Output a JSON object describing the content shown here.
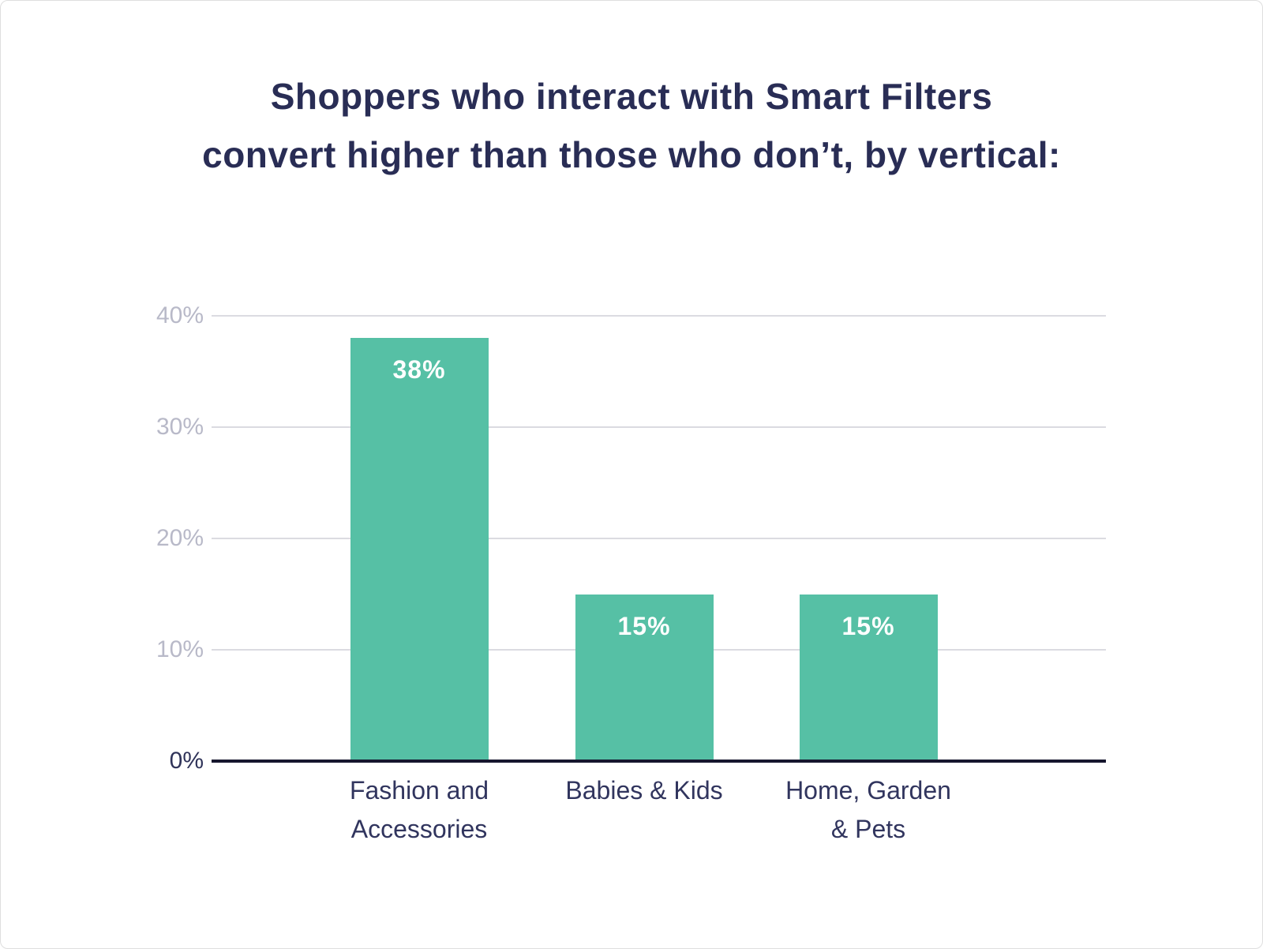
{
  "title": {
    "line1": "Shoppers who interact with Smart Filters",
    "line2": "convert higher than those who don’t, by vertical:"
  },
  "chart_data": {
    "type": "bar",
    "title": "Shoppers who interact with Smart Filters convert higher than those who don’t, by vertical:",
    "categories": [
      "Fashion and Accessories",
      "Babies & Kids",
      "Home, Garden & Pets"
    ],
    "category_lines": [
      [
        "Fashion and",
        "Accessories"
      ],
      [
        "Babies & Kids"
      ],
      [
        "Home, Garden",
        "& Pets"
      ]
    ],
    "values": [
      38,
      15,
      15
    ],
    "value_labels": [
      "38%",
      "15%",
      "15%"
    ],
    "xlabel": "",
    "ylabel": "",
    "ylim": [
      0,
      40
    ],
    "yticks": [
      0,
      10,
      20,
      30,
      40
    ],
    "ytick_labels": [
      "0%",
      "10%",
      "20%",
      "30%",
      "40%"
    ],
    "grid": "horizontal",
    "legend_position": "none",
    "colors": {
      "bar": "#56C0A5",
      "value_label": "#FFFFFF",
      "gridline": "#DBDBE1",
      "axis_line": "#16162E",
      "tick_label": "#B8B9C8",
      "zero_tick_label": "#2F3359",
      "title_text": "#292D55",
      "category_label": "#31355E"
    }
  }
}
